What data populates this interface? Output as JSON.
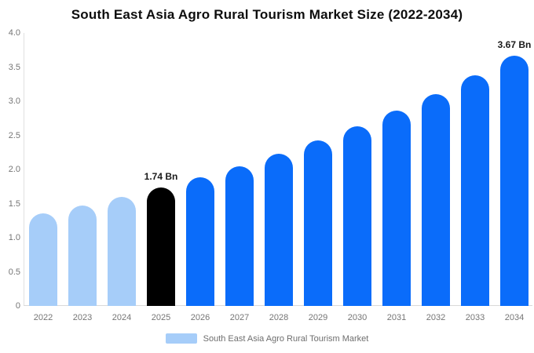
{
  "chart": {
    "title": "South East Asia Agro Rural Tourism Market Size (2022-2034)",
    "legend_label": "South East Asia Agro Rural Tourism Market"
  },
  "chart_data": {
    "type": "bar",
    "title": "South East Asia Agro Rural Tourism Market Size (2022-2034)",
    "xlabel": "",
    "ylabel": "",
    "ylim": [
      0,
      4.0
    ],
    "ytick_labels": [
      "0",
      "0.5",
      "1.0",
      "1.5",
      "2.0",
      "2.5",
      "3.0",
      "3.5",
      "4.0"
    ],
    "grid": false,
    "legend_position": "bottom",
    "legend_entries": [
      "South East Asia Agro Rural Tourism Market"
    ],
    "unit": "Bn",
    "categories": [
      "2022",
      "2023",
      "2024",
      "2025",
      "2026",
      "2027",
      "2028",
      "2029",
      "2030",
      "2031",
      "2032",
      "2033",
      "2034"
    ],
    "values": [
      1.36,
      1.47,
      1.6,
      1.74,
      1.89,
      2.05,
      2.23,
      2.42,
      2.63,
      2.86,
      3.1,
      3.38,
      3.67
    ],
    "bar_labels": [
      "",
      "",
      "",
      "1.74 Bn",
      "",
      "",
      "",
      "",
      "",
      "",
      "",
      "",
      "3.67 Bn"
    ],
    "bar_colors": [
      "#a6cdf9",
      "#a6cdf9",
      "#a6cdf9",
      "#000000",
      "#0a6cfa",
      "#0a6cfa",
      "#0a6cfa",
      "#0a6cfa",
      "#0a6cfa",
      "#0a6cfa",
      "#0a6cfa",
      "#0a6cfa",
      "#0a6cfa"
    ],
    "colors": {
      "historical": "#a6cdf9",
      "base_year": "#000000",
      "forecast": "#0a6cfa",
      "legend_swatch": "#a6cdf9",
      "axis_line": "#e0e0e0",
      "tick_text": "#757575"
    }
  }
}
